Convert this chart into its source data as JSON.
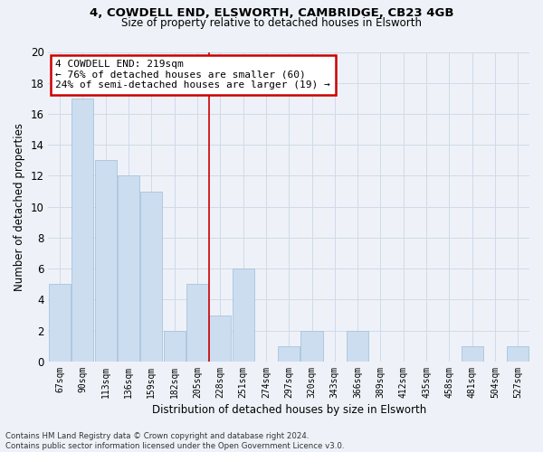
{
  "title1": "4, COWDELL END, ELSWORTH, CAMBRIDGE, CB23 4GB",
  "title2": "Size of property relative to detached houses in Elsworth",
  "xlabel": "Distribution of detached houses by size in Elsworth",
  "ylabel": "Number of detached properties",
  "categories": [
    "67sqm",
    "90sqm",
    "113sqm",
    "136sqm",
    "159sqm",
    "182sqm",
    "205sqm",
    "228sqm",
    "251sqm",
    "274sqm",
    "297sqm",
    "320sqm",
    "343sqm",
    "366sqm",
    "389sqm",
    "412sqm",
    "435sqm",
    "458sqm",
    "481sqm",
    "504sqm",
    "527sqm"
  ],
  "values": [
    5,
    17,
    13,
    12,
    11,
    2,
    5,
    3,
    6,
    0,
    1,
    2,
    0,
    2,
    0,
    0,
    0,
    0,
    1,
    0,
    1
  ],
  "bar_color": "#ccddf0",
  "bar_edge_color": "#a8c4dc",
  "grid_color": "#d0daea",
  "annotation_text": "4 COWDELL END: 219sqm\n← 76% of detached houses are smaller (60)\n24% of semi-detached houses are larger (19) →",
  "annotation_box_color": "#ffffff",
  "annotation_box_edge": "#cc0000",
  "marker_color": "#cc0000",
  "ylim": [
    0,
    20
  ],
  "yticks": [
    0,
    2,
    4,
    6,
    8,
    10,
    12,
    14,
    16,
    18,
    20
  ],
  "footer": "Contains HM Land Registry data © Crown copyright and database right 2024.\nContains public sector information licensed under the Open Government Licence v3.0.",
  "bg_color": "#eef2f8"
}
